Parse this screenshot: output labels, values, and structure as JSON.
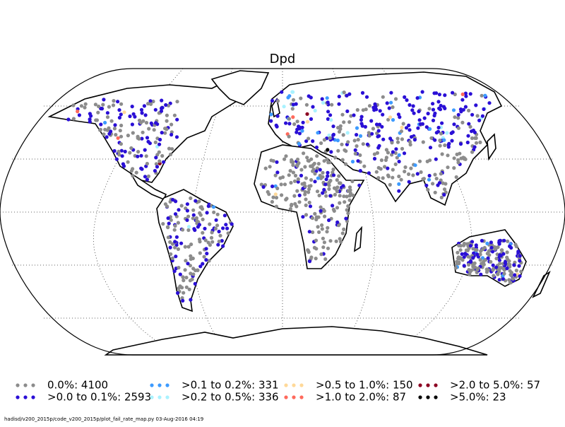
{
  "title": "Dpd",
  "legend": [
    {
      "label": "0.0%: 4100",
      "color": "#8c8c8c"
    },
    {
      "label": ">0.0 to 0.1%: 2593",
      "color": "#2a0fd6"
    },
    {
      "label": ">0.1 to 0.2%: 331",
      "color": "#3d9bff"
    },
    {
      "label": ">0.2 to 0.5%: 336",
      "color": "#a9f2ff"
    },
    {
      "label": ">0.5 to 1.0%: 150",
      "color": "#ffd999"
    },
    {
      "label": ">1.0 to 2.0%: 87",
      "color": "#ff6a5c"
    },
    {
      "label": ">2.0 to 5.0%: 57",
      "color": "#8c0022"
    },
    {
      "label": ">5.0%: 23",
      "color": "#000000"
    }
  ],
  "footer": "hadisd/v200_2015p/code_v200_2015p/plot_fail_rate_map.py   03-Aug-2016 04:19"
}
